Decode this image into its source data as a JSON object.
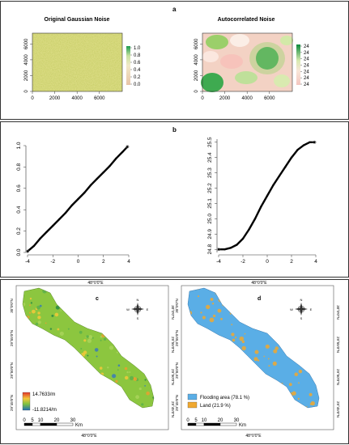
{
  "figure": {
    "panel_a": {
      "label": "a",
      "left": {
        "title": "Original Gaussian Noise",
        "x_ticks": [
          "0",
          "2000",
          "4000",
          "6000"
        ],
        "y_ticks": [
          "0",
          "2000",
          "4000",
          "6000"
        ],
        "legend_ticks": [
          "0.0",
          "0.2",
          "0.4",
          "0.6",
          "0.8",
          "1.0"
        ]
      },
      "right": {
        "title": "Autocorrelated Noise",
        "x_ticks": [
          "0",
          "2000",
          "4000",
          "6000"
        ],
        "y_ticks": [
          "0",
          "2000",
          "4000",
          "6000"
        ],
        "legend_ticks": [
          "24",
          "24",
          "24",
          "24",
          "24",
          "24",
          "24"
        ]
      }
    },
    "panel_b": {
      "label": "b",
      "left": {
        "x_ticks": [
          "-4",
          "-2",
          "0",
          "2",
          "4"
        ],
        "y_ticks": [
          "0.0",
          "0.2",
          "0.4",
          "0.6",
          "0.8",
          "1.0"
        ]
      },
      "right": {
        "x_ticks": [
          "-4",
          "-2",
          "0",
          "2",
          "4"
        ],
        "y_ticks": [
          "24.8",
          "24.9",
          "25.0",
          "25.1",
          "25.2",
          "25.3",
          "25.4",
          "25.5"
        ]
      }
    },
    "panel_c": {
      "label": "c",
      "lon_label": "48°0'0\"E",
      "lat_labels": [
        "30°0'0\"N",
        "29°55'0\"N",
        "29°50'0\"N",
        "29°45'0\"N"
      ],
      "legend_high": "14.7633/m",
      "legend_low": "-11.8214/m",
      "scale_ticks": [
        "0",
        "5",
        "10",
        "20",
        "30"
      ],
      "scale_unit": "Km",
      "compass": {
        "n": "N",
        "s": "S",
        "e": "E",
        "w": "W"
      }
    },
    "panel_d": {
      "label": "d",
      "lon_label": "48°0'0\"E",
      "lat_labels": [
        "30°0'0\"N",
        "29°55'0\"N",
        "29°50'0\"N",
        "29°45'0\"N"
      ],
      "legend": [
        {
          "label": "Flooding area (78.1 %)",
          "color": "#5aaee6"
        },
        {
          "label": "Land (21.9 %)",
          "color": "#f0a830"
        }
      ],
      "scale_ticks": [
        "0",
        "5",
        "10",
        "20",
        "30"
      ],
      "scale_unit": "Km",
      "compass": {
        "n": "N",
        "s": "S",
        "e": "E",
        "w": "W"
      }
    }
  },
  "chart_data": [
    {
      "type": "heatmap",
      "title": "Original Gaussian Noise",
      "xlim": [
        0,
        7000
      ],
      "ylim": [
        0,
        6000
      ],
      "legend_range": [
        0.0,
        1.0
      ]
    },
    {
      "type": "heatmap",
      "title": "Autocorrelated Noise",
      "xlim": [
        0,
        7000
      ],
      "ylim": [
        0,
        6000
      ]
    },
    {
      "type": "scatter",
      "xlim": [
        -4,
        4
      ],
      "ylim": [
        0,
        1
      ],
      "x": [
        -4.0,
        -3.5,
        -3.0,
        -2.5,
        -2.0,
        -1.5,
        -1.0,
        -0.5,
        0.0,
        0.5,
        1.0,
        1.5,
        2.0,
        2.5,
        3.0,
        3.5,
        3.9
      ],
      "y": [
        0.01,
        0.06,
        0.13,
        0.19,
        0.25,
        0.31,
        0.37,
        0.44,
        0.5,
        0.56,
        0.63,
        0.69,
        0.75,
        0.81,
        0.88,
        0.94,
        0.99
      ]
    },
    {
      "type": "scatter",
      "xlim": [
        -4,
        4
      ],
      "ylim": [
        24.78,
        25.52
      ],
      "x": [
        -4.0,
        -3.5,
        -3.0,
        -2.5,
        -2.0,
        -1.5,
        -1.0,
        -0.5,
        0.0,
        0.5,
        1.0,
        1.5,
        2.0,
        2.5,
        3.0,
        3.5,
        3.9
      ],
      "y": [
        24.8,
        24.8,
        24.81,
        24.83,
        24.87,
        24.93,
        25.0,
        25.08,
        25.15,
        25.22,
        25.28,
        25.34,
        25.4,
        25.45,
        25.48,
        25.5,
        25.5
      ]
    }
  ]
}
